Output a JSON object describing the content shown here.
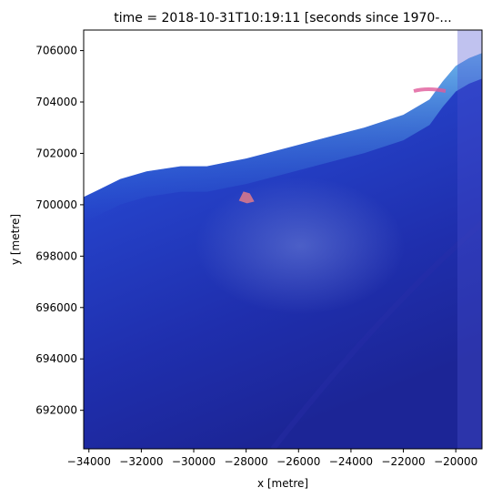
{
  "chart_data": {
    "type": "heatmap",
    "title": "time = 2018-10-31T10:19:11 [seconds since 1970-...",
    "xlabel": "x [metre]",
    "ylabel": "y [metre]",
    "xlim": [
      -34200,
      -19000
    ],
    "ylim": [
      690500,
      706800
    ],
    "x_ticks": [
      {
        "value": -34000,
        "label": "−34000"
      },
      {
        "value": -32000,
        "label": "−32000"
      },
      {
        "value": -30000,
        "label": "−30000"
      },
      {
        "value": -28000,
        "label": "−28000"
      },
      {
        "value": -26000,
        "label": "−26000"
      },
      {
        "value": -24000,
        "label": "−24000"
      },
      {
        "value": -22000,
        "label": "−22000"
      },
      {
        "value": -20000,
        "label": "−20000"
      }
    ],
    "y_ticks": [
      {
        "value": 692000,
        "label": "692000"
      },
      {
        "value": 694000,
        "label": "694000"
      },
      {
        "value": 696000,
        "label": "696000"
      },
      {
        "value": 698000,
        "label": "698000"
      },
      {
        "value": 700000,
        "label": "700000"
      },
      {
        "value": 702000,
        "label": "702000"
      },
      {
        "value": 704000,
        "label": "704000"
      },
      {
        "value": 706000,
        "label": "706000"
      }
    ],
    "grid": false,
    "image_description_colors": {
      "land": "#ffffff",
      "shallow_water": "#2fa8e6",
      "mid_water": "#2c52d8",
      "deep_water": "#1a1f92",
      "sediment": "#6d7fd6",
      "coral": "#e07a8a"
    },
    "coastline": [
      [
        -34200,
        700300
      ],
      [
        -33600,
        700600
      ],
      [
        -32800,
        701000
      ],
      [
        -31800,
        701300
      ],
      [
        -30500,
        701500
      ],
      [
        -29500,
        701500
      ],
      [
        -28000,
        701800
      ],
      [
        -26500,
        702200
      ],
      [
        -25000,
        702600
      ],
      [
        -23500,
        703000
      ],
      [
        -22000,
        703500
      ],
      [
        -21000,
        704100
      ],
      [
        -20500,
        704800
      ],
      [
        -20000,
        705400
      ],
      [
        -19500,
        705700
      ],
      [
        -19000,
        705900
      ]
    ],
    "reef_patch": {
      "x": -28000,
      "y": 700300
    }
  }
}
